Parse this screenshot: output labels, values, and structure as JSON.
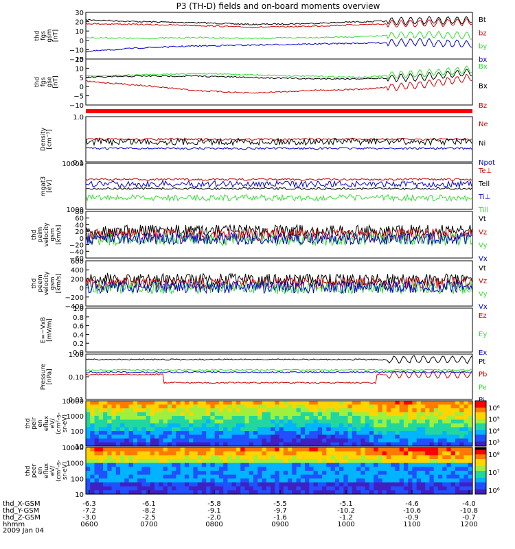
{
  "title": "P3 (TH-D) fields and on-board moments overview",
  "date_label": "2009 Jan 04",
  "colors": {
    "black": "#000000",
    "red": "#cc0000",
    "brightred": "#ff0000",
    "green": "#33dd33",
    "blue": "#0000cc"
  },
  "chart_data": [
    {
      "type": "line",
      "panel": "fgs-gsm",
      "ylabel": [
        "thd",
        "fgs",
        "gsm",
        "[nT]"
      ],
      "ylim": [
        -20,
        30
      ],
      "yticks": [
        "30",
        "20",
        "10",
        "0",
        "−10",
        "−20"
      ],
      "series": [
        {
          "name": "Bt",
          "color": "black",
          "values": [
            22,
            20,
            19,
            17,
            18,
            20,
            21,
            22
          ]
        },
        {
          "name": "bz",
          "color": "red",
          "values": [
            18,
            17,
            16,
            14,
            15,
            17,
            18,
            20
          ]
        },
        {
          "name": "by",
          "color": "green",
          "values": [
            3,
            2,
            3,
            2,
            3,
            4,
            6,
            5
          ]
        },
        {
          "name": "bx",
          "color": "blue",
          "values": [
            -12,
            -8,
            -6,
            -5,
            -4,
            -3,
            -2,
            -4
          ]
        }
      ]
    },
    {
      "type": "line",
      "panel": "fgs-gsm2",
      "ylabel": [
        "thd",
        "fgs",
        "gse",
        "[nT]"
      ],
      "ylim": [
        -15,
        20
      ],
      "yticks": [
        "15",
        "10",
        "5",
        "0",
        "−5",
        "−10"
      ],
      "series": [
        {
          "name": "Bx",
          "color": "green",
          "values": [
            7,
            8,
            9,
            8,
            7,
            6,
            9,
            12
          ]
        },
        {
          "name": "Bx",
          "color": "black",
          "values": [
            6,
            7,
            7,
            6,
            5,
            5,
            6,
            10
          ]
        },
        {
          "name": "Bz",
          "color": "red",
          "values": [
            3,
            0,
            -4,
            -6,
            -4,
            -3,
            0,
            6
          ]
        }
      ]
    },
    {
      "type": "line",
      "panel": "density",
      "ylabel": [
        "Density",
        "[cm⁻³]"
      ],
      "ylog": true,
      "yticks": [
        "1.0",
        "0.1"
      ],
      "series": [
        {
          "name": "Ne",
          "color": "red"
        },
        {
          "name": "Ni",
          "color": "black"
        },
        {
          "name": "Npot",
          "color": "blue"
        }
      ]
    },
    {
      "type": "line",
      "panel": "temperature",
      "ylabel": [
        "mgat3",
        "[eV]"
      ],
      "ylog": true,
      "yticks": [
        "10000",
        "1000"
      ],
      "series": [
        {
          "name": "Te⊥",
          "color": "red"
        },
        {
          "name": "Tell",
          "color": "black"
        },
        {
          "name": "Ti⊥",
          "color": "blue"
        },
        {
          "name": "Till",
          "color": "green"
        }
      ]
    },
    {
      "type": "line",
      "panel": "peim-velocity",
      "ylabel": [
        "thd",
        "peim",
        "velocity",
        "gsm",
        "[km/s]"
      ],
      "ylim": [
        -60,
        80
      ],
      "yticks": [
        "80",
        "60",
        "40",
        "20",
        "0",
        "−20",
        "−40",
        "−60"
      ],
      "series": [
        {
          "name": "Vt",
          "color": "black"
        },
        {
          "name": "Vz",
          "color": "red"
        },
        {
          "name": "Vy",
          "color": "green"
        },
        {
          "name": "Vx",
          "color": "blue"
        }
      ]
    },
    {
      "type": "line",
      "panel": "peem-velocity",
      "ylabel": [
        "thd",
        "peem",
        "velocity",
        "gsm",
        "[km/s]"
      ],
      "ylim": [
        -400,
        600
      ],
      "yticks": [
        "600",
        "400",
        "200",
        "0",
        "−200",
        "−400"
      ],
      "series": [
        {
          "name": "Vt",
          "color": "black"
        },
        {
          "name": "Vz",
          "color": "red"
        },
        {
          "name": "Vy",
          "color": "green"
        },
        {
          "name": "Vx",
          "color": "blue"
        }
      ]
    },
    {
      "type": "line",
      "panel": "e-field",
      "ylabel": [
        "E=−VxB",
        "[mV/m]"
      ],
      "ylim": [
        0,
        1
      ],
      "yticks": [
        "1.0",
        "0.8",
        "0.6",
        "0.4",
        "0.2",
        "0.0"
      ],
      "series": [
        {
          "name": "Ez",
          "color": "red"
        },
        {
          "name": "Ey",
          "color": "green"
        },
        {
          "name": "Ex",
          "color": "blue"
        }
      ]
    },
    {
      "type": "line",
      "panel": "pressure",
      "ylabel": [
        "Pressure",
        "[nPa]"
      ],
      "ylog": true,
      "yticks": [
        "1.00",
        "0.10",
        "0.01"
      ],
      "series": [
        {
          "name": "Pt",
          "color": "black"
        },
        {
          "name": "Pb",
          "color": "red"
        },
        {
          "name": "Pe",
          "color": "green"
        },
        {
          "name": "Pi",
          "color": "blue"
        }
      ]
    },
    {
      "type": "heatmap",
      "panel": "peir-eflux",
      "ylabel": [
        "thd",
        "peir",
        "en",
        "eflux",
        "eV/",
        "(cm²-s-",
        "sr-eV)"
      ],
      "yticks": [
        "10000",
        "1000",
        "100",
        "10"
      ],
      "colorbar_ticks": [
        "10⁶",
        "10⁵",
        "10⁴",
        "10³"
      ]
    },
    {
      "type": "heatmap",
      "panel": "peer-eflux",
      "ylabel": [
        "thd",
        "peer",
        "en",
        "eflux",
        "eV/",
        "(cm²-s-",
        "sr-eV)"
      ],
      "yticks": [
        "10000",
        "1000",
        "100",
        "10"
      ],
      "colorbar_ticks": [
        "10⁸",
        "10⁷",
        "10⁶"
      ]
    }
  ],
  "x_axis": {
    "rows": [
      {
        "label": "thd_X-GSM",
        "values": [
          "-6.3",
          "-6.1",
          "-5.8",
          "-5.5",
          "-5.1",
          "-4.6",
          "-4.0"
        ]
      },
      {
        "label": "thd_Y-GSM",
        "values": [
          "-7.2",
          "-8.2",
          "-9.1",
          "-9.7",
          "-10.2",
          "-10.6",
          "-10.8"
        ]
      },
      {
        "label": "thd_Z-GSM",
        "values": [
          "-3.0",
          "-2.5",
          "-2.0",
          "-1.6",
          "-1.2",
          "-0.9",
          "-0.7"
        ]
      },
      {
        "label": "hhmm",
        "values": [
          "0600",
          "0700",
          "0800",
          "0900",
          "1000",
          "1100",
          "1200"
        ]
      }
    ]
  }
}
